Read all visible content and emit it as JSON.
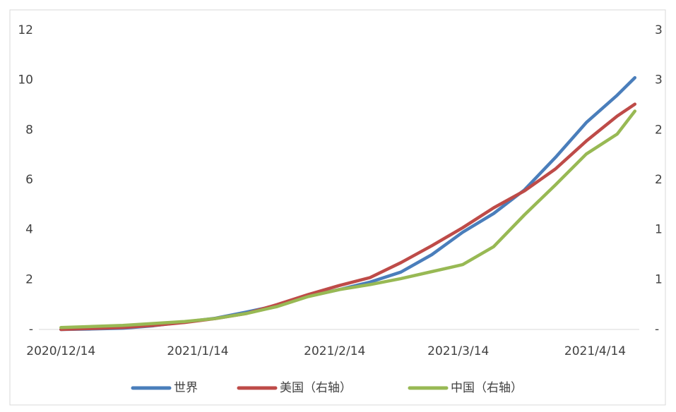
{
  "chart_data": {
    "type": "line",
    "x": [
      "2020/12/14",
      "2020/12/21",
      "2020/12/28",
      "2021/1/4",
      "2021/1/11",
      "2021/1/18",
      "2021/1/25",
      "2021/2/1",
      "2021/2/8",
      "2021/2/15",
      "2021/2/22",
      "2021/3/1",
      "2021/3/8",
      "2021/3/15",
      "2021/3/22",
      "2021/3/29",
      "2021/4/5",
      "2021/4/12",
      "2021/4/19",
      "2021/4/23"
    ],
    "xlim": [
      "2020/12/9",
      "2021/4/24"
    ],
    "xticks": [
      "2020/12/14",
      "2021/1/14",
      "2021/2/14",
      "2021/3/14",
      "2021/4/14"
    ],
    "ylim": [
      0,
      12
    ],
    "yticks": [
      {
        "value": 0,
        "label": "-"
      },
      2,
      4,
      6,
      8,
      10,
      12
    ],
    "y2lim": [
      0,
      3
    ],
    "y2ticks": [
      {
        "value": 0,
        "label": "-"
      },
      {
        "value": 0.5,
        "label": "1"
      },
      1,
      {
        "value": 1.5,
        "label": "2"
      },
      2,
      {
        "value": 2.5,
        "label": "3"
      },
      3
    ],
    "legend": "bottom",
    "series": [
      {
        "name": "世界",
        "color": "#4a7ebb",
        "values": [
          0,
          0.02,
          0.05,
          0.15,
          0.3,
          0.45,
          0.7,
          0.96,
          1.33,
          1.6,
          1.9,
          2.3,
          3.0,
          3.9,
          4.65,
          5.6,
          6.9,
          8.3,
          9.4,
          10.1
        ]
      },
      {
        "name": "美国（右轴）",
        "color": "#be4b48",
        "axis": "y2",
        "values": [
          0,
          0.01,
          0.02,
          0.04,
          0.07,
          0.11,
          0.16,
          0.25,
          0.35,
          0.44,
          0.52,
          0.67,
          0.84,
          1.02,
          1.22,
          1.39,
          1.61,
          1.89,
          2.14,
          2.26
        ]
      },
      {
        "name": "中国（右轴）",
        "color": "#98b954",
        "axis": "y2",
        "values": [
          0.02,
          0.03,
          0.04,
          0.06,
          0.08,
          0.11,
          0.16,
          0.23,
          0.33,
          0.4,
          0.45,
          0.51,
          0.58,
          0.65,
          0.83,
          1.15,
          1.45,
          1.76,
          1.96,
          2.19
        ]
      }
    ]
  }
}
